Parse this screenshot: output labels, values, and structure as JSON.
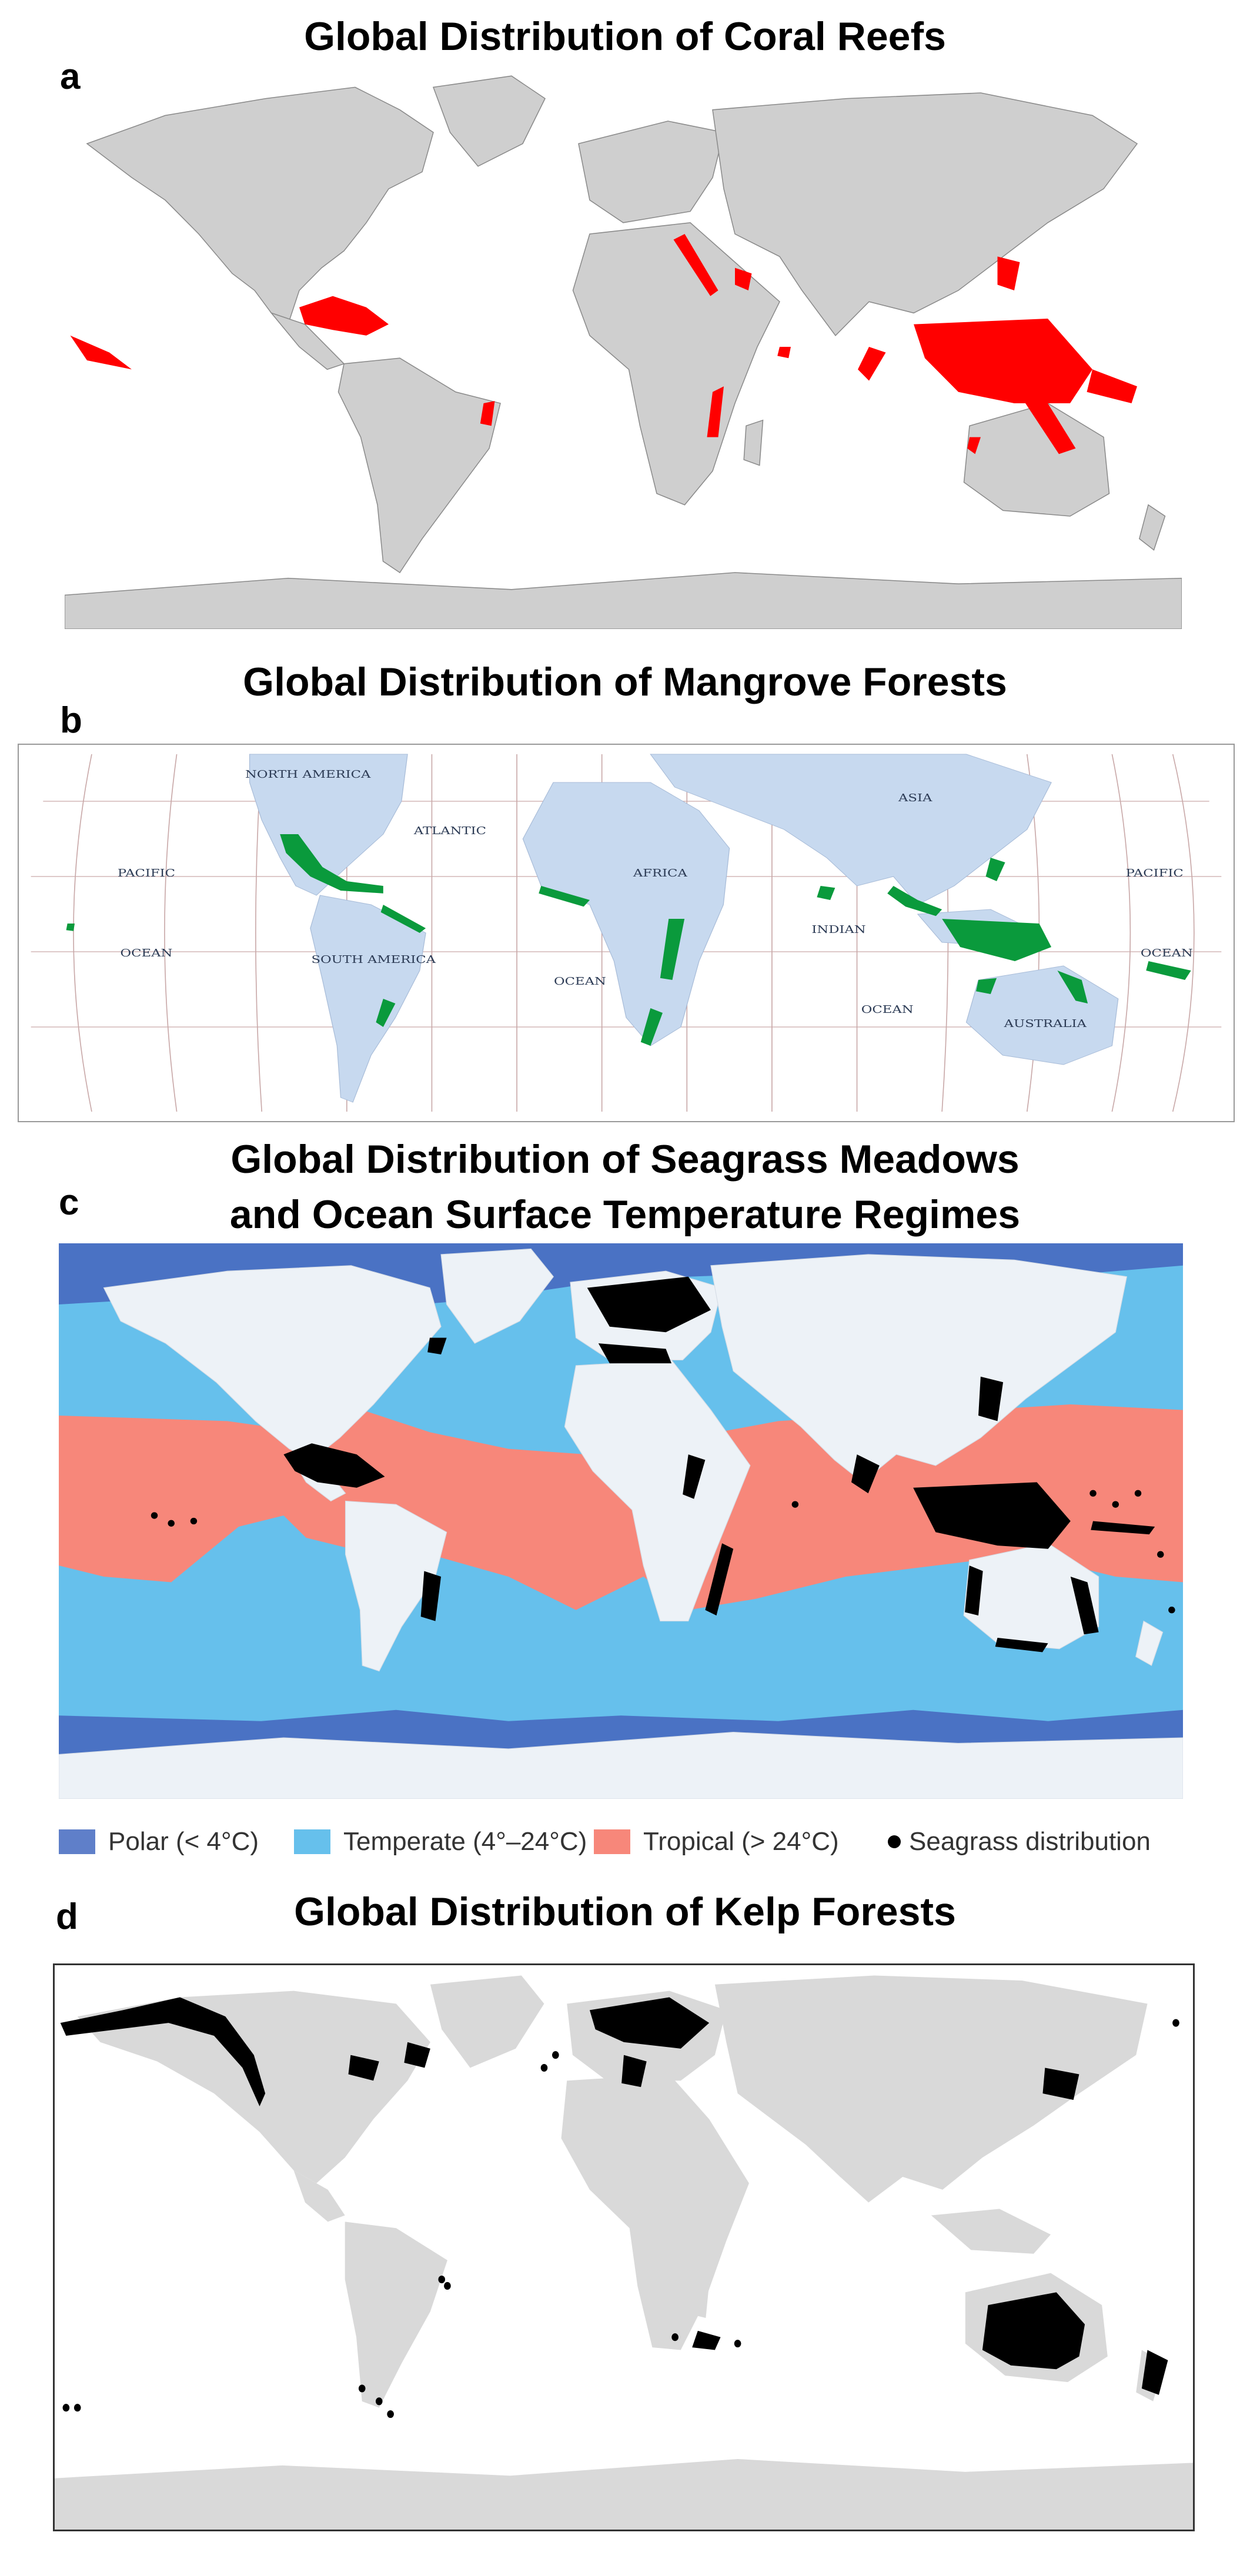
{
  "panels": {
    "a": {
      "letter": "a",
      "title": "Global Distribution of Coral Reefs",
      "colors": {
        "land": "#cfcfcf",
        "feature": "#ff0000",
        "ocean": "#ffffff"
      }
    },
    "b": {
      "letter": "b",
      "title": "Global Distribution of Mangrove Forests",
      "labels": {
        "north_america": "NORTH AMERICA",
        "south_america": "SOUTH AMERICA",
        "africa": "AFRICA",
        "asia": "ASIA",
        "australia": "AUSTRALIA",
        "atlantic": "ATLANTIC",
        "pacific_left": "PACIFIC",
        "pacific_right": "PACIFIC",
        "ocean_left": "OCEAN",
        "ocean_center": "OCEAN",
        "ocean_indian": "OCEAN",
        "ocean_right": "OCEAN",
        "indian": "INDIAN"
      },
      "colors": {
        "land": "#c7d9ef",
        "feature": "#0a9a3c",
        "ocean": "#ffffff"
      }
    },
    "c": {
      "letter": "c",
      "title_line1": "Global Distribution of Seagrass Meadows",
      "title_line2": "and Ocean Surface Temperature Regimes",
      "legend": {
        "polar": "Polar (< 4°C)",
        "temperate": "Temperate (4°–24°C)",
        "tropical": "Tropical (> 24°C)",
        "seagrass": "Seagrass distribution"
      },
      "colors": {
        "polar": "#4a72c4",
        "temperate": "#66c0ec",
        "tropical": "#f7877a",
        "land": "#edf2f7",
        "feature": "#000000"
      }
    },
    "d": {
      "letter": "d",
      "title": "Global Distribution of Kelp Forests",
      "colors": {
        "land": "#d9d9d9",
        "feature": "#000000",
        "ocean": "#ffffff"
      }
    }
  }
}
